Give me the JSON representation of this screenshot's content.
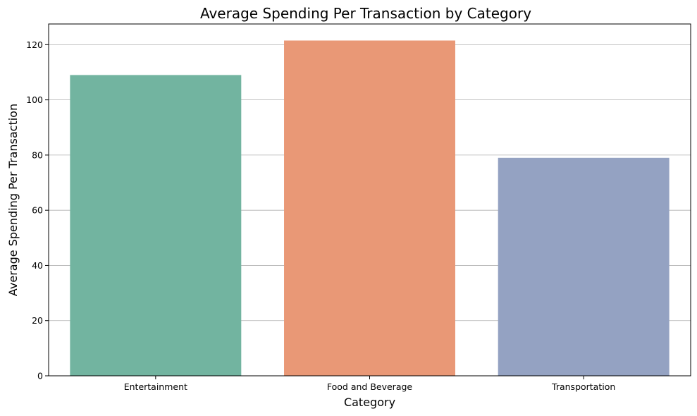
{
  "chart_data": {
    "type": "bar",
    "title": "Average Spending Per Transaction by Category",
    "xlabel": "Category",
    "ylabel": "Average Spending Per Transaction",
    "categories": [
      "Entertainment",
      "Food and Beverage",
      "Transportation"
    ],
    "values": [
      109,
      121.5,
      79
    ],
    "colors": [
      "#72b4a0",
      "#e99876",
      "#94a2c2"
    ],
    "ylim": [
      0,
      127.5
    ],
    "yticks": [
      0,
      20,
      40,
      60,
      80,
      100,
      120
    ],
    "grid": "y",
    "legend": "none"
  }
}
